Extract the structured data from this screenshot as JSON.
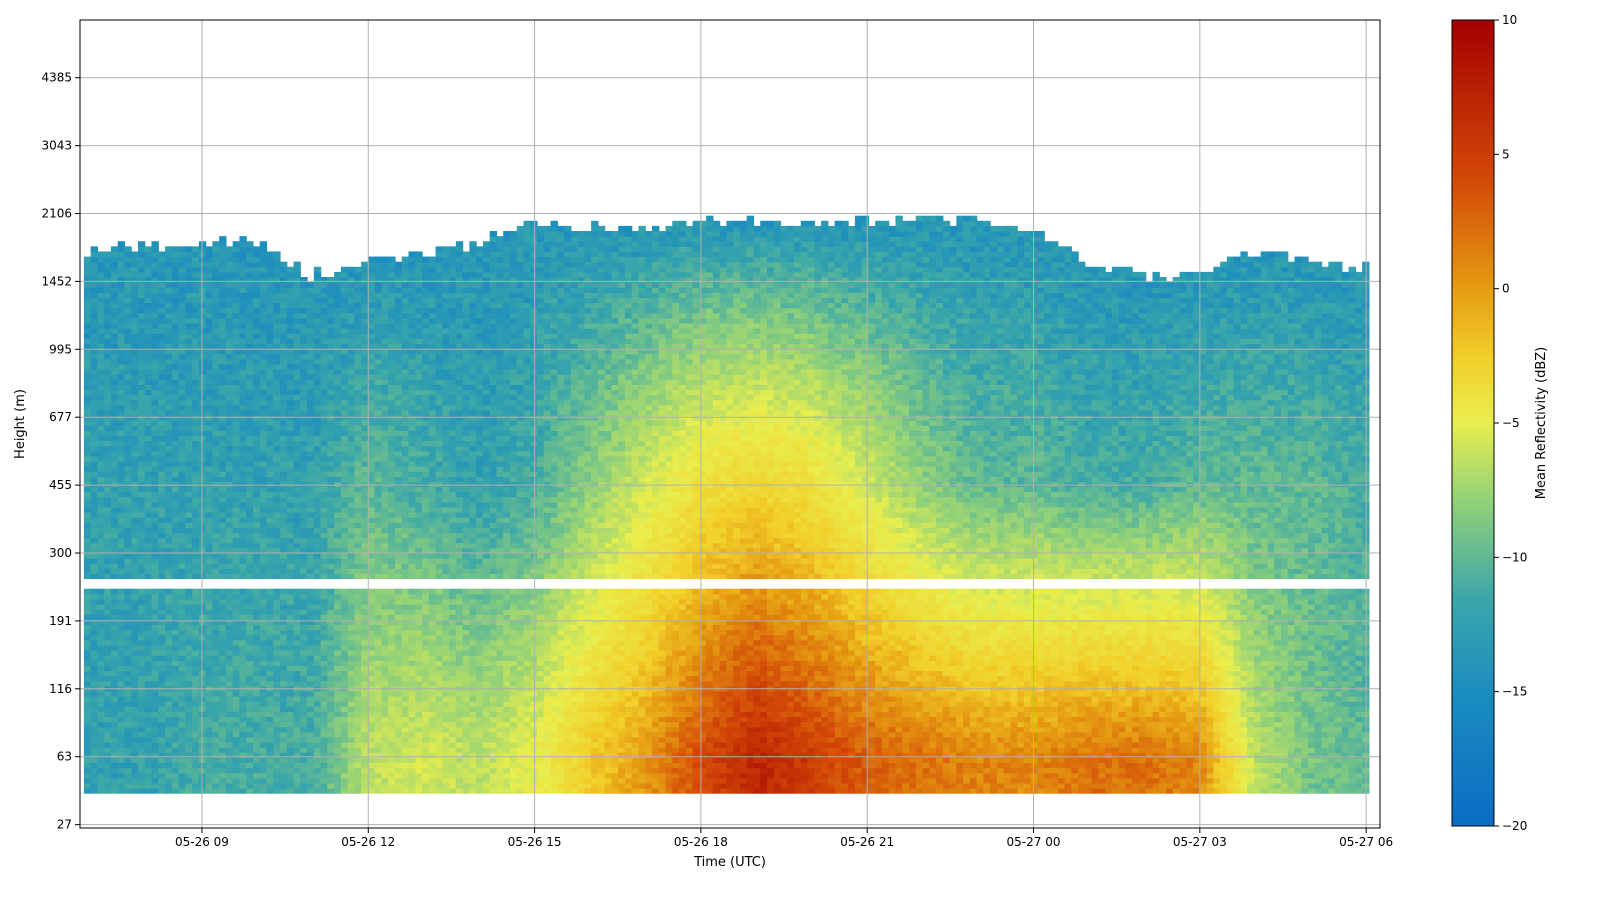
{
  "chart_data": {
    "type": "heatmap",
    "title": "",
    "xlabel": "Time (UTC)",
    "ylabel": "Height (m)",
    "x_ticks": [
      "05-26 09",
      "05-26 12",
      "05-26 15",
      "05-26 18",
      "05-26 21",
      "05-27 00",
      "05-27 03",
      "05-27 06"
    ],
    "x_tick_hours": [
      9,
      12,
      15,
      18,
      21,
      24,
      27,
      30
    ],
    "x_range_hours": [
      6.8,
      30.25
    ],
    "y_ticks": [
      "27",
      "63",
      "116",
      "191",
      "300",
      "455",
      "677",
      "995",
      "1452",
      "2106",
      "3043",
      "4385"
    ],
    "y_range_index": [
      -0.05,
      11.85
    ],
    "grid": true,
    "colorbar": {
      "label": "Mean Reflectivity (dBZ)",
      "range": [
        -20,
        10
      ],
      "ticks": [
        "10",
        "5",
        "0",
        "−5",
        "−10",
        "−15",
        "−20"
      ],
      "tick_values": [
        10,
        5,
        0,
        -5,
        -10,
        -15,
        -20
      ]
    },
    "colors": {
      "low": "#0b6fbf",
      "mid_low": "#2aa0b6",
      "mid": "#9fd66a",
      "mid_high": "#f4ec52",
      "high": "#e59a12",
      "max": "#a80000"
    },
    "data_gap_height_range_m": [
      235,
      250
    ],
    "time_series_columns_hours": [
      7,
      8,
      9,
      10,
      11,
      12,
      13,
      14,
      15,
      16,
      17,
      18,
      19,
      20,
      21,
      22,
      23,
      24,
      25,
      26,
      27,
      28,
      29,
      30
    ],
    "reflectivity_at_63m": [
      -15,
      -15,
      -14,
      -14,
      -14,
      -9,
      -8,
      -9,
      -7,
      -3,
      0,
      4,
      7,
      5,
      3,
      2,
      1,
      1,
      2,
      2,
      1,
      -9,
      -12,
      -13
    ],
    "reflectivity_at_455m": [
      -15,
      -15,
      -15,
      -15,
      -15,
      -13,
      -14,
      -15,
      -14,
      -11,
      -8,
      -5,
      -4,
      -5,
      -8,
      -11,
      -13,
      -13,
      -14,
      -14,
      -13,
      -13,
      -13,
      -14
    ],
    "cloud_top_m": [
      1700,
      1750,
      1800,
      1800,
      1500,
      1600,
      1700,
      1800,
      2000,
      1950,
      1950,
      2000,
      2000,
      2000,
      2000,
      2050,
      2050,
      1900,
      1600,
      1500,
      1500,
      1700,
      1650,
      1550
    ]
  }
}
